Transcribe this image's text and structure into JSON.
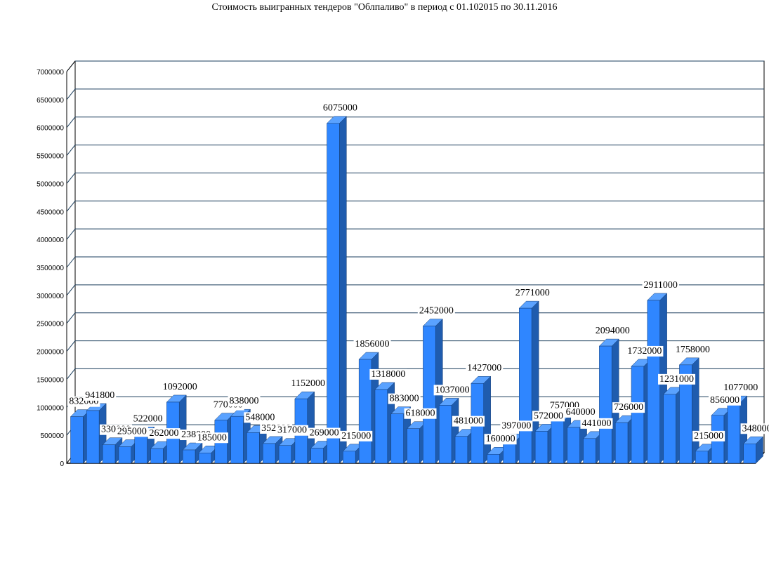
{
  "chart_data": {
    "type": "bar",
    "title": "Стоимость выигранных тендеров \"Облпаливо\" в период с 01.102015 по 30.11.2016",
    "xlabel": "",
    "ylabel": "",
    "ylim": [
      0,
      7000000
    ],
    "yticks": [
      "0",
      "500000",
      "1000000",
      "1500000",
      "2000000",
      "2500000",
      "3000000",
      "3500000",
      "4000000",
      "4500000",
      "5000000",
      "5500000",
      "6000000",
      "6500000",
      "7000000"
    ],
    "grid": true,
    "legend": "none",
    "bar_color": "#2f86ff",
    "values": [
      832000,
      941800,
      330000,
      295000,
      522000,
      262000,
      1092000,
      238000,
      185000,
      770000,
      838000,
      548000,
      352000,
      317000,
      1152000,
      269000,
      6075000,
      215000,
      1856000,
      1318000,
      883000,
      618000,
      2452000,
      1037000,
      481000,
      1427000,
      160000,
      397000,
      2771000,
      572000,
      757000,
      640000,
      441000,
      2094000,
      726000,
      1732000,
      2911000,
      1231000,
      1758000,
      215000,
      856000,
      1077000,
      348000
    ],
    "labels": [
      "832000",
      "941800",
      "330000",
      "295000",
      "522000",
      "262000",
      "1092000",
      "238000",
      "185000",
      "770000",
      "838000",
      "548000",
      "352000",
      "317000",
      "1152000",
      "269000",
      "6075000",
      "215000",
      "1856000",
      "1318000",
      "883000",
      "618000",
      "2452000",
      "1037000",
      "481000",
      "1427000",
      "160000",
      "397000",
      "2771000",
      "572000",
      "757000",
      "640000",
      "441000",
      "2094000",
      "726000",
      "1732000",
      "2911000",
      "1231000",
      "1758000",
      "215000",
      "856000",
      "1077000",
      "348000"
    ]
  }
}
